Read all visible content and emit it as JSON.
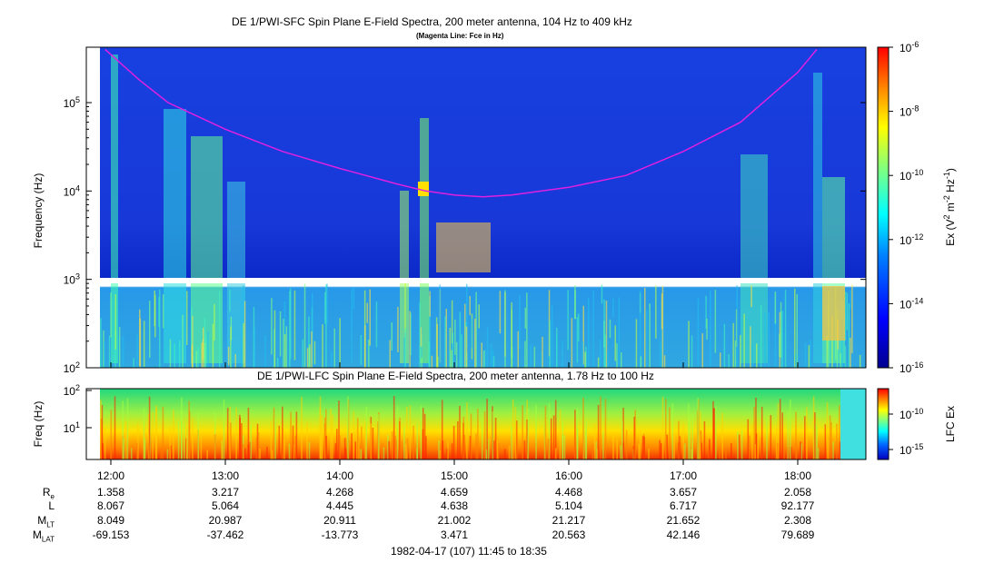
{
  "top_title": "DE 1/PWI-SFC  Spin Plane E-Field Spectra, 200 meter antenna, 104 Hz to 409 kHz",
  "top_subtitle": "(Magenta Line: Fce in Hz)",
  "lfc_title": "DE 1/PWI-LFC  Spin Plane E-Field Spectra, 200 meter antenna, 1.78 Hz to 100 Hz",
  "footer": "1982-04-17 (107) 11:45 to 18:35",
  "colors": {
    "fce_line": "#e020e0",
    "gap": "#ffffff"
  },
  "chart_data": [
    {
      "type": "heatmap",
      "title": "DE 1/PWI-SFC  Spin Plane E-Field Spectra, 200 meter antenna, 104 Hz to 409 kHz",
      "subtitle": "(Magenta Line: Fce in Hz)",
      "xlabel": "",
      "ylabel": "Frequency (Hz)",
      "y_scale": "log",
      "ylim": [
        100,
        409000
      ],
      "xlim": [
        "11:45",
        "18:35"
      ],
      "yticks": [
        {
          "label": "10",
          "exp": "2"
        },
        {
          "label": "10",
          "exp": "3"
        },
        {
          "label": "10",
          "exp": "4"
        },
        {
          "label": "10",
          "exp": "5"
        }
      ],
      "colorbar": {
        "label": "Ex (V",
        "label_parts": [
          "Ex (V",
          "2",
          " m",
          "-2",
          " Hz",
          "-1",
          ")"
        ],
        "scale": "log",
        "range": [
          1e-16,
          1e-06
        ],
        "ticks": [
          {
            "label": "10",
            "exp": "-6"
          },
          {
            "label": "10",
            "exp": "-8"
          },
          {
            "label": "10",
            "exp": "-10"
          },
          {
            "label": "10",
            "exp": "-12"
          },
          {
            "label": "10",
            "exp": "-14"
          },
          {
            "label": "10",
            "exp": "-16"
          }
        ]
      },
      "series": [
        {
          "name": "Fce",
          "times": [
            "11:57",
            "12:15",
            "12:30",
            "13:00",
            "13:30",
            "14:00",
            "14:30",
            "14:45",
            "15:00",
            "15:15",
            "15:30",
            "16:00",
            "16:30",
            "17:00",
            "17:30",
            "18:00",
            "18:10"
          ],
          "values": [
            400000,
            180000,
            100000,
            50000,
            28000,
            18000,
            12000,
            10000,
            9000,
            8600,
            9000,
            11000,
            15000,
            28000,
            60000,
            220000,
            400000
          ]
        }
      ],
      "data_gap_hz": 1000
    },
    {
      "type": "heatmap",
      "title": "DE 1/PWI-LFC  Spin Plane E-Field Spectra, 200 meter antenna, 1.78 Hz to 100 Hz",
      "ylabel": "Freq (Hz)",
      "y_scale": "log",
      "ylim": [
        1.78,
        100
      ],
      "yticks": [
        {
          "label": "10",
          "exp": "1"
        },
        {
          "label": "10",
          "exp": "2"
        }
      ],
      "colorbar": {
        "label": "LFC Ex",
        "ticks": [
          {
            "label": "10",
            "exp": "-10"
          },
          {
            "label": "10",
            "exp": "-15"
          }
        ]
      }
    }
  ],
  "x_ticks": [
    "12:00",
    "13:00",
    "14:00",
    "15:00",
    "16:00",
    "17:00",
    "18:00"
  ],
  "ephemeris": {
    "rows": [
      {
        "label": "R",
        "sub": "e",
        "values": [
          "1.358",
          "3.217",
          "4.268",
          "4.659",
          "4.468",
          "3.657",
          "2.058"
        ]
      },
      {
        "label": "L",
        "sub": "",
        "values": [
          "8.067",
          "5.064",
          "4.445",
          "4.638",
          "5.104",
          "6.717",
          "92.177"
        ]
      },
      {
        "label": "M",
        "sub": "LT",
        "values": [
          "8.049",
          "20.987",
          "20.911",
          "21.002",
          "21.217",
          "21.652",
          "2.308"
        ]
      },
      {
        "label": "M",
        "sub": "LAT",
        "values": [
          "-69.153",
          "-37.462",
          "-13.773",
          "3.471",
          "20.563",
          "42.146",
          "79.689"
        ]
      }
    ]
  }
}
